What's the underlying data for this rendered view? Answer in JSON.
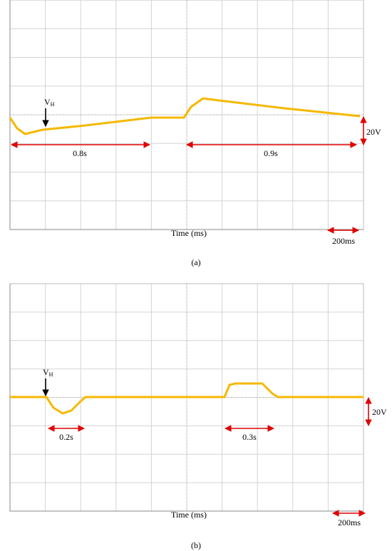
{
  "panels": [
    {
      "caption": "(a)",
      "x_label": "Time (ms)",
      "scale_x": "200ms",
      "scale_y": "20V",
      "marker": {
        "main": "V",
        "sub": "H"
      },
      "durations": [
        "0.8s",
        "0.9s"
      ]
    },
    {
      "caption": "(b)",
      "x_label": "Time (ms)",
      "scale_x": "200ms",
      "scale_y": "20V",
      "marker": {
        "main": "V",
        "sub": "H"
      },
      "durations": [
        "0.2s",
        "0.3s"
      ]
    }
  ]
}
